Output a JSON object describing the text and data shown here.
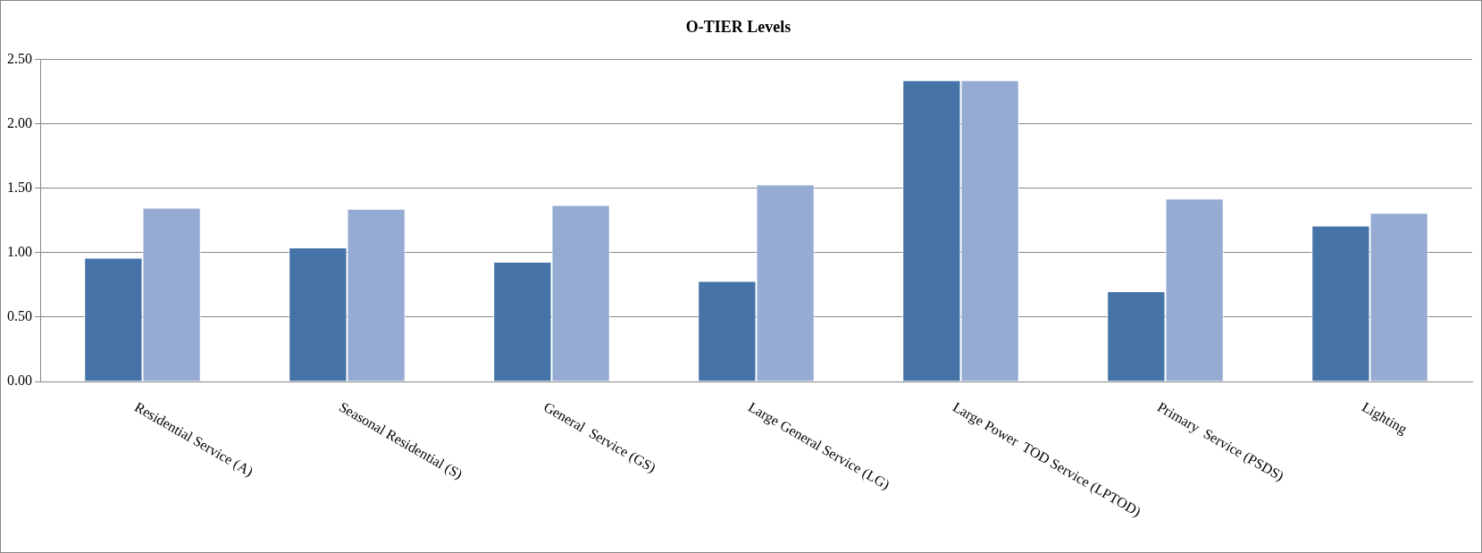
{
  "chart_data": {
    "type": "bar",
    "title": "O-TIER Levels",
    "categories": [
      "Residential Service (A)",
      "Seasonal Residential (S)",
      "General  Service (GS)",
      "Large General Service (LG)",
      "Large Power  TOD Service (LPTOD)",
      "Primary  Service (PSDS)",
      "Lighting"
    ],
    "series": [
      {
        "color": "#4573a7",
        "values": [
          0.96,
          1.04,
          0.93,
          0.78,
          2.34,
          0.7,
          1.21
        ]
      },
      {
        "color": "#95abd3",
        "values": [
          1.35,
          1.34,
          1.37,
          1.53,
          2.34,
          1.42,
          1.31
        ]
      }
    ],
    "ylim": [
      0,
      2.5
    ],
    "yticks": [
      {
        "value": 0,
        "label": "0.00"
      },
      {
        "value": 0.5,
        "label": "0.50"
      },
      {
        "value": 1,
        "label": "1.00"
      },
      {
        "value": 1.5,
        "label": "1.50"
      },
      {
        "value": 2,
        "label": "2.00"
      },
      {
        "value": 2.5,
        "label": "2.50"
      }
    ],
    "grid": "y",
    "legend": false
  }
}
